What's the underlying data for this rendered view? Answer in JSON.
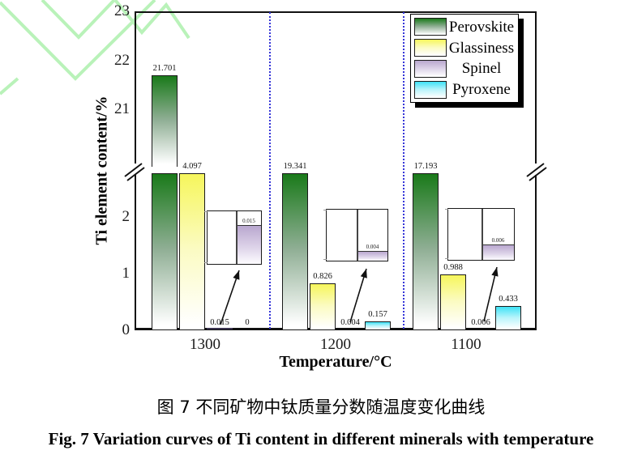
{
  "captions": {
    "cn": "图 7 不同矿物中钛质量分数随温度变化曲线",
    "en": "Fig. 7  Variation curves of Ti content in different minerals with temperature"
  },
  "watermark": {
    "description": "pale green chevron logo, top-left corner",
    "color": "#b9f2b9"
  },
  "chart_data": {
    "type": "bar",
    "title": "",
    "xlabel": "Temperature/°C",
    "ylabel": "Ti element content/%",
    "categories": [
      "1300",
      "1200",
      "1100"
    ],
    "series": [
      {
        "name": "Perovskite",
        "color": "#1a7a1a",
        "color_mid": "#8fae94",
        "values": [
          21.701,
          19.341,
          17.193
        ],
        "labels": [
          "21.701",
          "19.341",
          "17.193"
        ]
      },
      {
        "name": "Glassiness",
        "color": "#f6f65c",
        "color_mid": "#fbfbc2",
        "values": [
          4.097,
          0.826,
          0.988
        ],
        "labels": [
          "4.097",
          "0.826",
          "0.988"
        ]
      },
      {
        "name": "Spinel",
        "color": "#b9a7cf",
        "color_mid": "#dcd2e8",
        "values": [
          0.015,
          0.004,
          0.006
        ],
        "labels": [
          "0.015",
          "0.004",
          "0.006"
        ]
      },
      {
        "name": "Pyroxene",
        "color": "#3ee2f6",
        "color_mid": "#b8f4fb",
        "values": [
          0,
          0.157,
          0.433
        ],
        "labels": [
          "0",
          "0.157",
          "0.433"
        ]
      }
    ],
    "y_axis": {
      "unit": "%",
      "lower_panel_ticks": [
        "0",
        "1",
        "2"
      ],
      "upper_panel_ticks": [
        "21",
        "22",
        "23"
      ],
      "axis_break_between": [
        2.7,
        20.6
      ],
      "grid": "off"
    },
    "insets": {
      "description": "magnified views of the Spinel bars, y-scale 0 to 0.02",
      "values": [
        0.015,
        0.004,
        0.006
      ],
      "labels": [
        "0.015",
        "0.004",
        "0.006"
      ]
    },
    "legend": {
      "position": "top-right",
      "entries": [
        "Perovskite",
        "Glassiness",
        "Spinel",
        "Pyroxene"
      ]
    },
    "separators": {
      "style": "dotted vertical lines between temperature groups",
      "color": "#3535d8"
    }
  }
}
